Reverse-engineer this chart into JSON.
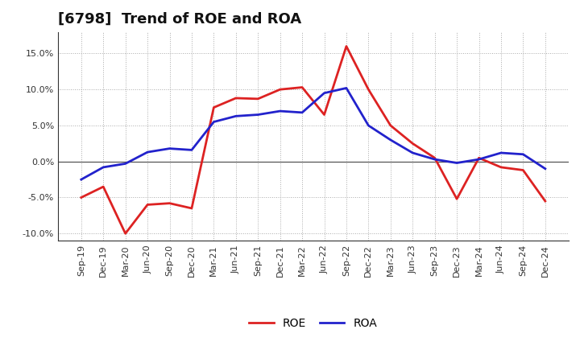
{
  "title": "[6798]  Trend of ROE and ROA",
  "labels": [
    "Sep-19",
    "Dec-19",
    "Mar-20",
    "Jun-20",
    "Sep-20",
    "Dec-20",
    "Mar-21",
    "Jun-21",
    "Sep-21",
    "Dec-21",
    "Mar-22",
    "Jun-22",
    "Sep-22",
    "Dec-22",
    "Mar-23",
    "Jun-23",
    "Sep-23",
    "Dec-23",
    "Mar-24",
    "Jun-24",
    "Sep-24",
    "Dec-24"
  ],
  "ROE": [
    -5.0,
    -3.5,
    -10.0,
    -6.0,
    -5.8,
    -6.5,
    7.5,
    8.8,
    8.7,
    10.0,
    10.3,
    6.5,
    16.0,
    10.0,
    5.0,
    2.5,
    0.5,
    -5.2,
    0.5,
    -0.8,
    -1.2,
    -5.5
  ],
  "ROA": [
    -2.5,
    -0.8,
    -0.3,
    1.3,
    1.8,
    1.6,
    5.5,
    6.3,
    6.5,
    7.0,
    6.8,
    9.5,
    10.2,
    5.0,
    3.0,
    1.2,
    0.3,
    -0.2,
    0.3,
    1.2,
    1.0,
    -1.0
  ],
  "roe_color": "#dd2222",
  "roa_color": "#2222cc",
  "background_color": "#ffffff",
  "plot_bg_color": "#ffffff",
  "ylim": [
    -11.0,
    18.0
  ],
  "yticks": [
    -10.0,
    -5.0,
    0.0,
    5.0,
    10.0,
    15.0
  ],
  "line_width": 2.0,
  "title_fontsize": 13,
  "tick_fontsize": 8,
  "legend_fontsize": 10
}
